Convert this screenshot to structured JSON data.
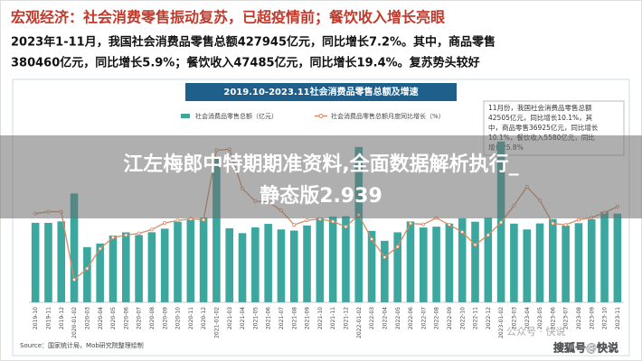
{
  "header": {
    "title": "宏观经济：社会消费零售振动复苏，已超疫情前；餐饮收入增长亮眼",
    "lines": [
      "2023年1-11月，我国社会消费品零售总额427945亿元，同比增长7.2%。其中，商品零售",
      "380460亿元，同比增长5.9%；餐饮收入47485亿元，同比增长19.4%。复苏势头较好"
    ]
  },
  "overlay": {
    "lines": [
      "江左梅郎中特期期准资料,全面数据解析执行_",
      "静态版2.939"
    ]
  },
  "watermarks": [
    "公众号 · 快说",
    "搜狐号@快说"
  ],
  "chart_data": {
    "type": "bar-line",
    "title": "2019.10-2023.11社会消费品零售总额及增速",
    "annotation": [
      "11月份，我国社会消费品零售总额",
      "42505亿元，同比增长10.1%，其",
      "中，商品零售36925亿元，同比增长",
      "10.1%，餐饮收入5580亿元，同比",
      "增长25.8%"
    ],
    "source": "Source：国家统计局，Mob研究院整理绘制",
    "categories": [
      "2019-10",
      "2019-11",
      "2019-12",
      "2020-01-02",
      "2020-03",
      "2020-04",
      "2020-05",
      "2020-06",
      "2020-07",
      "2020-08",
      "2020-09",
      "2020-10",
      "2020-11",
      "2020-12",
      "2021-01-02",
      "2021-03",
      "2021-04",
      "2021-05",
      "2021-06",
      "2021-07",
      "2021-08",
      "2021-09",
      "2021-10",
      "2021-11",
      "2021-12",
      "2022-01-02",
      "2022-03",
      "2022-04",
      "2022-05",
      "2022-06",
      "2022-07",
      "2022-08",
      "2022-09",
      "2022-10",
      "2022-11",
      "2022-12",
      "2023-01-02",
      "2023-03",
      "2023-04",
      "2023-05",
      "2023-06",
      "2023-07",
      "2023-08",
      "2023-09",
      "2023-10",
      "2023-11"
    ],
    "ylim": [
      0,
      80000
    ],
    "y2lim": [
      -30,
      40
    ],
    "series": [
      {
        "name": "社会消费品零售总额（亿元）",
        "color": "#3ba79f",
        "values": [
          38104,
          38094,
          38777,
          52130,
          26450,
          28178,
          31973,
          33526,
          32203,
          33571,
          35295,
          38576,
          39514,
          40566,
          69737,
          35484,
          33153,
          35945,
          37586,
          34925,
          34395,
          36833,
          40454,
          41043,
          41269,
          74426,
          34233,
          29483,
          33547,
          38742,
          35870,
          36258,
          37745,
          40271,
          38615,
          40542,
          77067,
          37715,
          34910,
          37803,
          39951,
          36761,
          37933,
          39826,
          43333,
          42505
        ]
      },
      {
        "name": "社会消费品零售总额月度同比增长（%）",
        "color": "#d98a62",
        "axis": "y2",
        "values": [
          7.2,
          8.0,
          8.0,
          -20.5,
          -15.8,
          -7.5,
          -2.8,
          -1.8,
          -1.1,
          0.5,
          3.3,
          4.3,
          5.0,
          4.6,
          33.8,
          34.2,
          17.7,
          12.4,
          12.1,
          8.5,
          2.5,
          4.4,
          4.9,
          3.9,
          1.7,
          6.7,
          -3.5,
          -11.1,
          -6.7,
          3.1,
          2.7,
          5.4,
          2.5,
          -0.5,
          -5.9,
          -1.8,
          3.5,
          10.6,
          18.4,
          12.7,
          3.1,
          2.5,
          4.6,
          5.5,
          7.6,
          10.1
        ]
      }
    ]
  }
}
